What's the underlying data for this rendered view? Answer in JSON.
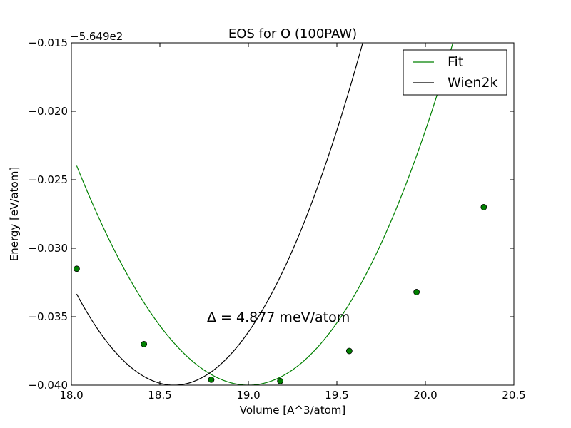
{
  "chart_data": {
    "type": "line",
    "title": "EOS for O (100PAW)",
    "xlabel": "Volume [A^3/atom]",
    "ylabel": "Energy [eV/atom]",
    "y_offset_label": "−5.649e2",
    "xlim": [
      18.0,
      20.5
    ],
    "ylim": [
      -0.04,
      -0.015
    ],
    "x_ticks": [
      18.0,
      18.5,
      19.0,
      19.5,
      20.0,
      20.5
    ],
    "x_tick_labels": [
      "18.0",
      "18.5",
      "19.0",
      "19.5",
      "20.0",
      "20.5"
    ],
    "y_ticks": [
      -0.04,
      -0.035,
      -0.03,
      -0.025,
      -0.02,
      -0.015
    ],
    "y_tick_labels": [
      "−0.040",
      "−0.035",
      "−0.030",
      "−0.025",
      "−0.020",
      "−0.015"
    ],
    "grid": false,
    "legend_placement": "top-right",
    "annotation": "Δ = 4.877 meV/atom",
    "series": [
      {
        "name": "Fit",
        "color": "#008000",
        "kind": "fit-curve-with-points",
        "curve": {
          "v0": 19.0,
          "e0": -0.04,
          "a": 0.0178,
          "b": 0.0008,
          "x_range": [
            18.03,
            20.33
          ]
        },
        "points": [
          {
            "x": 18.03,
            "y": -0.0315
          },
          {
            "x": 18.41,
            "y": -0.037
          },
          {
            "x": 18.79,
            "y": -0.0396
          },
          {
            "x": 19.18,
            "y": -0.0397
          },
          {
            "x": 19.57,
            "y": -0.0375
          },
          {
            "x": 19.95,
            "y": -0.0332
          },
          {
            "x": 20.33,
            "y": -0.027
          }
        ]
      },
      {
        "name": "Wien2k",
        "color": "#000000",
        "kind": "curve",
        "curve": {
          "v0": 18.58,
          "e0": -0.04,
          "a": 0.022,
          "b": 0.0,
          "x_range": [
            18.03,
            20.33
          ]
        }
      }
    ]
  }
}
